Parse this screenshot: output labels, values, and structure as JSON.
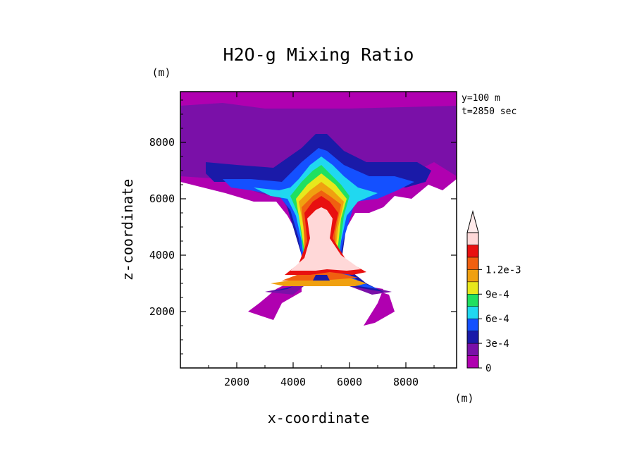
{
  "chart_data": {
    "type": "heatmap",
    "title": "H2O-g Mixing Ratio",
    "xlabel": "x-coordinate",
    "ylabel": "z-coordinate",
    "x_unit": "(m)",
    "y_unit": "(m)",
    "annotations": [
      "y=100 m",
      "t=2850 sec"
    ],
    "xlim": [
      0,
      9800
    ],
    "ylim": [
      0,
      9800
    ],
    "x_ticks": [
      2000,
      4000,
      6000,
      8000
    ],
    "x_tick_labels": [
      "2000",
      "4000",
      "6000",
      "8000"
    ],
    "y_ticks": [
      2000,
      4000,
      6000,
      8000
    ],
    "y_tick_labels": [
      "2000",
      "4000",
      "6000",
      "8000"
    ],
    "grid": false,
    "colorbar": {
      "levels": [
        0,
        0.00015,
        0.0003,
        0.00045,
        0.0006,
        0.00075,
        0.0009,
        0.00105,
        0.0012
      ],
      "tick_labels": [
        "0",
        "3e-4",
        "6e-4",
        "9e-4",
        "1.2e-3"
      ],
      "colors": [
        "#b000b0",
        "#7a10a8",
        "#1a1aa8",
        "#1450ff",
        "#20d8f0",
        "#20e060",
        "#e8e81c",
        "#f0a010",
        "#f06010",
        "#e81010",
        "#ffd8d8"
      ],
      "extend_top_color": "#ffeaea",
      "position": "right"
    },
    "regions_description_levels": "contour bands of water vapor mixing ratio, plume centred at x=5000 m"
  }
}
